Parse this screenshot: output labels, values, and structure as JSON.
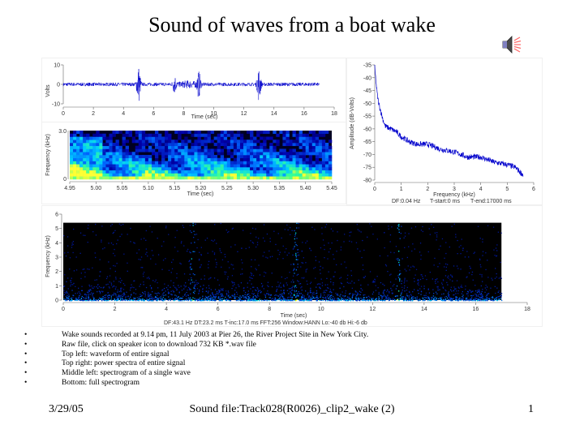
{
  "slide": {
    "title": "Sound of waves from a boat wake",
    "bullets": [
      "Wake sounds recorded at 9.14 pm, 11 July 2003 at Pier 26, the River Project Site in New York City.",
      "Raw file, click on speaker icon to download 732 KB *.wav file",
      "Top left: waveform of entire signal",
      "Top right: power spectra of entire signal",
      "Middle left: spectrogram of a single wave",
      "Bottom: full spectrogram"
    ],
    "footer": {
      "date": "3/29/05",
      "center": "Sound file:Track028(R0026)_clip2_wake (2)",
      "page": "1"
    },
    "speaker_icon": "speaker-icon"
  },
  "chart_data": [
    {
      "id": "waveform",
      "type": "line",
      "xlabel": "Time (sec)",
      "ylabel": "Volts",
      "xlim": [
        0,
        18
      ],
      "ylim": [
        -10,
        10
      ],
      "xticks": [
        0,
        2,
        4,
        6,
        8,
        10,
        12,
        14,
        16,
        18
      ],
      "yticks": [
        -10,
        0,
        10
      ],
      "signal_extent_sec": 17.0,
      "bursts": [
        {
          "t": 5.0,
          "amp": 9
        },
        {
          "t": 7.4,
          "amp": 4
        },
        {
          "t": 9.0,
          "amp": 6
        },
        {
          "t": 13.0,
          "amp": 8
        }
      ],
      "line_color": "#0000cc"
    },
    {
      "id": "power-spectrum",
      "type": "line",
      "xlabel": "Frequency (kHz)",
      "ylabel": "Amplitude (dB-Volts)",
      "xlim": [
        0,
        6
      ],
      "ylim": [
        -80,
        -35
      ],
      "xticks": [
        0,
        1,
        2,
        3,
        4,
        5,
        6
      ],
      "yticks": [
        -35,
        -40,
        -45,
        -50,
        -55,
        -60,
        -65,
        -70,
        -75,
        -80
      ],
      "x": [
        0,
        0.05,
        0.1,
        0.15,
        0.2,
        0.3,
        0.4,
        0.6,
        0.8,
        1.0,
        1.3,
        1.6,
        2.0,
        2.5,
        3.0,
        3.5,
        4.0,
        4.5,
        5.0,
        5.3,
        5.5,
        5.6
      ],
      "y": [
        -36,
        -42,
        -47,
        -50,
        -52,
        -56,
        -59,
        -60,
        -61,
        -63,
        -65,
        -66,
        -66,
        -68,
        -69,
        -71,
        -71,
        -73,
        -74,
        -75,
        -77,
        -78
      ],
      "footer": {
        "df": "DF:0.04 Hz",
        "tstart": "T-start:0 ms",
        "tend": "T-end:17000 ms"
      },
      "line_color": "#0000cc"
    },
    {
      "id": "wave-spectrogram",
      "type": "heatmap",
      "xlabel": "Time (sec)",
      "ylabel": "Frequency (kHz)",
      "xlim": [
        4.95,
        5.45
      ],
      "ylim": [
        0,
        3.0
      ],
      "xticks": [
        "4.95",
        "5.00",
        "5.05",
        "5.10",
        "5.15",
        "5.20",
        "5.25",
        "5.30",
        "5.35",
        "5.40",
        "5.45"
      ],
      "yticks": [
        "0",
        "3.0"
      ],
      "colormap": [
        "#000033",
        "#0000aa",
        "#0066ff",
        "#00ccff",
        "#33ff99",
        "#ffff33"
      ]
    },
    {
      "id": "full-spectrogram",
      "type": "heatmap",
      "xlabel": "Time (sec)",
      "ylabel": "Frequency (kHz)",
      "xlim": [
        0,
        18
      ],
      "ylim": [
        0,
        6
      ],
      "xticks": [
        0,
        2,
        4,
        6,
        8,
        10,
        12,
        14,
        16,
        18
      ],
      "yticks": [
        0,
        1,
        2,
        3,
        4,
        5,
        6
      ],
      "signal_extent_sec": 17.0,
      "burst_times_sec": [
        5.0,
        9.0,
        13.0
      ],
      "footer": "DF:43.1 Hz    DT:23.2 ms    T-inc:17.0 ms    FFT:256    Window:HANN    Lo:-40 db    Hi:-6 db",
      "colormap": [
        "#000000",
        "#000066",
        "#0033cc",
        "#0099ff",
        "#00ffcc",
        "#ffff00"
      ]
    }
  ]
}
